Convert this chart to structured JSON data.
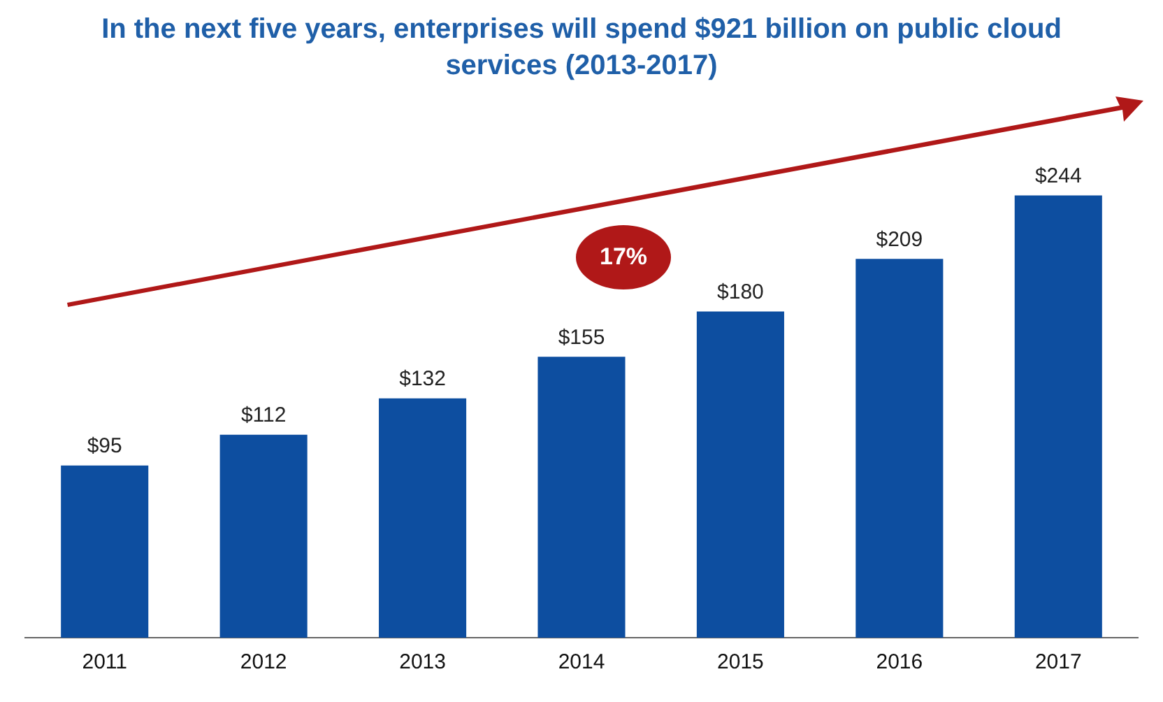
{
  "chart_data": {
    "type": "bar",
    "title": "In the next five years, enterprises will spend $921 billion on public cloud services (2013-2017)",
    "categories": [
      "2011",
      "2012",
      "2013",
      "2014",
      "2015",
      "2016",
      "2017"
    ],
    "values": [
      95,
      112,
      132,
      155,
      180,
      209,
      244
    ],
    "value_labels": [
      "$95",
      "$112",
      "$132",
      "$155",
      "$180",
      "$209",
      "$244"
    ],
    "color": "#0d4ea0",
    "annotations": [
      "17%"
    ],
    "grid": false,
    "legend": false
  }
}
